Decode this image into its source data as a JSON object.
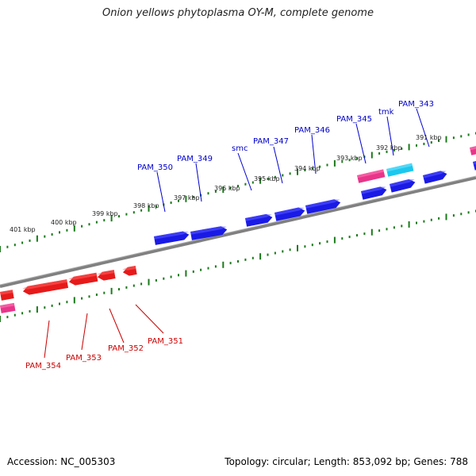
{
  "title": "Onion yellows phytoplasma OY-M, complete genome",
  "accession": "Accession: NC_005303",
  "summary": "Topology: circular; Length: 853,092 bp; Genes: 788",
  "colors": {
    "forward_gene": "#1a1ae6",
    "forward_gene_light": "#5a5aff",
    "reverse_gene": "#e61a1a",
    "reverse_gene_light": "#ff6060",
    "pink_gene": "#e8358a",
    "pink_gene_light": "#ff7ab8",
    "cyan_gene": "#1cc8ee",
    "cyan_gene_light": "#7fe6ff",
    "backbone": "#808080",
    "tick": "#1a7a1a",
    "forward_label": "#0000cc",
    "reverse_label": "#cc0000"
  },
  "kbp_ticks": [
    {
      "text": "391 kbp"
    },
    {
      "text": "392 kbp"
    },
    {
      "text": "393 kbp"
    },
    {
      "text": "394 kbp"
    },
    {
      "text": "395 kbp"
    },
    {
      "text": "396 kbp"
    },
    {
      "text": "397 kbp"
    },
    {
      "text": "398 kbp"
    },
    {
      "text": "399 kbp"
    },
    {
      "text": "400 kbp"
    },
    {
      "text": "401 kbp"
    }
  ],
  "forward_gene_labels": [
    {
      "name": "PAM_343"
    },
    {
      "name": "tmk"
    },
    {
      "name": "PAM_345"
    },
    {
      "name": "PAM_346"
    },
    {
      "name": "PAM_347"
    },
    {
      "name": "smc"
    },
    {
      "name": "PAM_349"
    },
    {
      "name": "PAM_350"
    }
  ],
  "reverse_gene_labels": [
    {
      "name": "PAM_351"
    },
    {
      "name": "PAM_352"
    },
    {
      "name": "PAM_353"
    },
    {
      "name": "PAM_354"
    }
  ]
}
